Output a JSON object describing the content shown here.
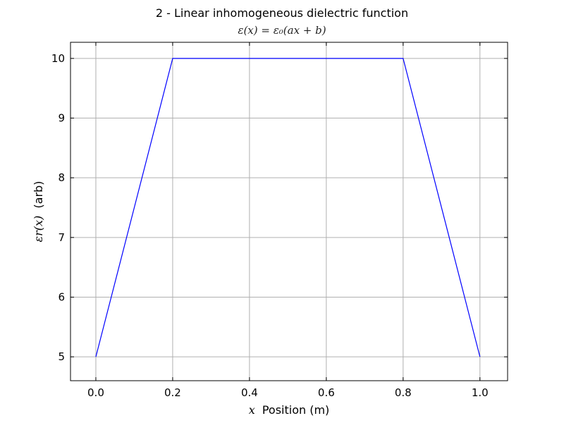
{
  "chart_data": {
    "type": "line",
    "title": "2 - Linear inhomogeneous dielectric function",
    "subtitle": "ε(x) = ε₀(ax + b)",
    "xlabel_math": "x",
    "xlabel": "Position (m)",
    "ylabel_math": "εr(x)",
    "ylabel": "(arb)",
    "xlim": [
      -0.066,
      1.072
    ],
    "ylim": [
      4.6,
      10.27
    ],
    "xticks": [
      0.0,
      0.2,
      0.4,
      0.6,
      0.8,
      1.0
    ],
    "xtick_labels": [
      "0.0",
      "0.2",
      "0.4",
      "0.6",
      "0.8",
      "1.0"
    ],
    "yticks": [
      5,
      6,
      7,
      8,
      9,
      10
    ],
    "ytick_labels": [
      "5",
      "6",
      "7",
      "8",
      "9",
      "10"
    ],
    "grid": true,
    "series": [
      {
        "name": "epsilon",
        "color": "#0000ff",
        "x": [
          0.0,
          0.2,
          0.8,
          1.0
        ],
        "y": [
          5,
          10,
          10,
          5
        ]
      }
    ]
  }
}
